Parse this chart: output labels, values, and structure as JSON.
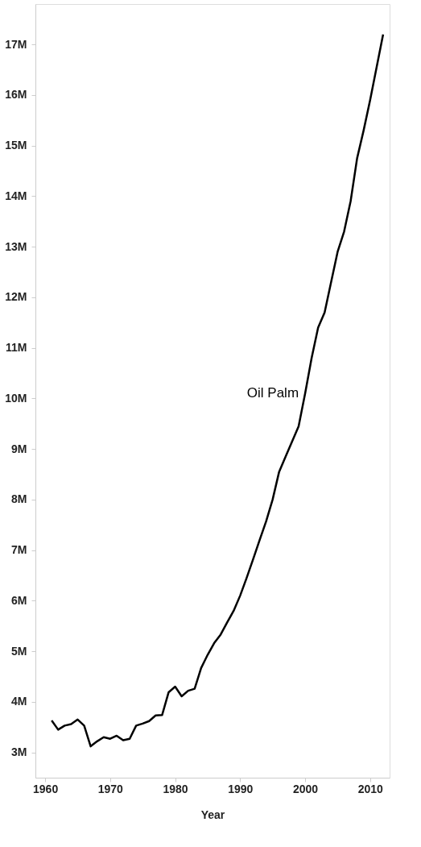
{
  "chart_data": {
    "type": "line",
    "xlabel": "Year",
    "x": [
      1961,
      1962,
      1963,
      1964,
      1965,
      1966,
      1967,
      1968,
      1969,
      1970,
      1971,
      1972,
      1973,
      1974,
      1975,
      1976,
      1977,
      1978,
      1979,
      1980,
      1981,
      1982,
      1983,
      1984,
      1985,
      1986,
      1987,
      1988,
      1989,
      1990,
      1991,
      1992,
      1993,
      1994,
      1995,
      1996,
      1997,
      1998,
      1999,
      2000,
      2001,
      2002,
      2003,
      2004,
      2005,
      2006,
      2007,
      2008,
      2009,
      2010,
      2011,
      2012
    ],
    "series": [
      {
        "name": "Oil Palm",
        "color": "#000000",
        "values": [
          3630000,
          3450000,
          3530000,
          3560000,
          3650000,
          3530000,
          3120000,
          3220000,
          3300000,
          3270000,
          3330000,
          3240000,
          3270000,
          3530000,
          3570000,
          3620000,
          3730000,
          3740000,
          4190000,
          4300000,
          4110000,
          4220000,
          4260000,
          4670000,
          4930000,
          5160000,
          5330000,
          5570000,
          5800000,
          6100000,
          6450000,
          6820000,
          7200000,
          7570000,
          8000000,
          8550000,
          8850000,
          9150000,
          9450000,
          10100000,
          10800000,
          11400000,
          11700000,
          12300000,
          12900000,
          13300000,
          13900000,
          14750000,
          15300000,
          15900000,
          16550000,
          17200000
        ]
      }
    ],
    "xlim": [
      1958.5,
      2013
    ],
    "xticks": [
      1960,
      1970,
      1980,
      1990,
      2000,
      2010
    ],
    "ylim": [
      2500000,
      17800000
    ],
    "yticks": [
      {
        "value": 3000000,
        "label": "3M"
      },
      {
        "value": 4000000,
        "label": "4M"
      },
      {
        "value": 5000000,
        "label": "5M"
      },
      {
        "value": 6000000,
        "label": "6M"
      },
      {
        "value": 7000000,
        "label": "7M"
      },
      {
        "value": 8000000,
        "label": "8M"
      },
      {
        "value": 9000000,
        "label": "9M"
      },
      {
        "value": 10000000,
        "label": "10M"
      },
      {
        "value": 11000000,
        "label": "11M"
      },
      {
        "value": 12000000,
        "label": "12M"
      },
      {
        "value": 13000000,
        "label": "13M"
      },
      {
        "value": 14000000,
        "label": "14M"
      },
      {
        "value": 15000000,
        "label": "15M"
      },
      {
        "value": 16000000,
        "label": "16M"
      },
      {
        "value": 17000000,
        "label": "17M"
      }
    ],
    "grid": false,
    "legend": false,
    "marker": "none",
    "line_style": "solid"
  }
}
